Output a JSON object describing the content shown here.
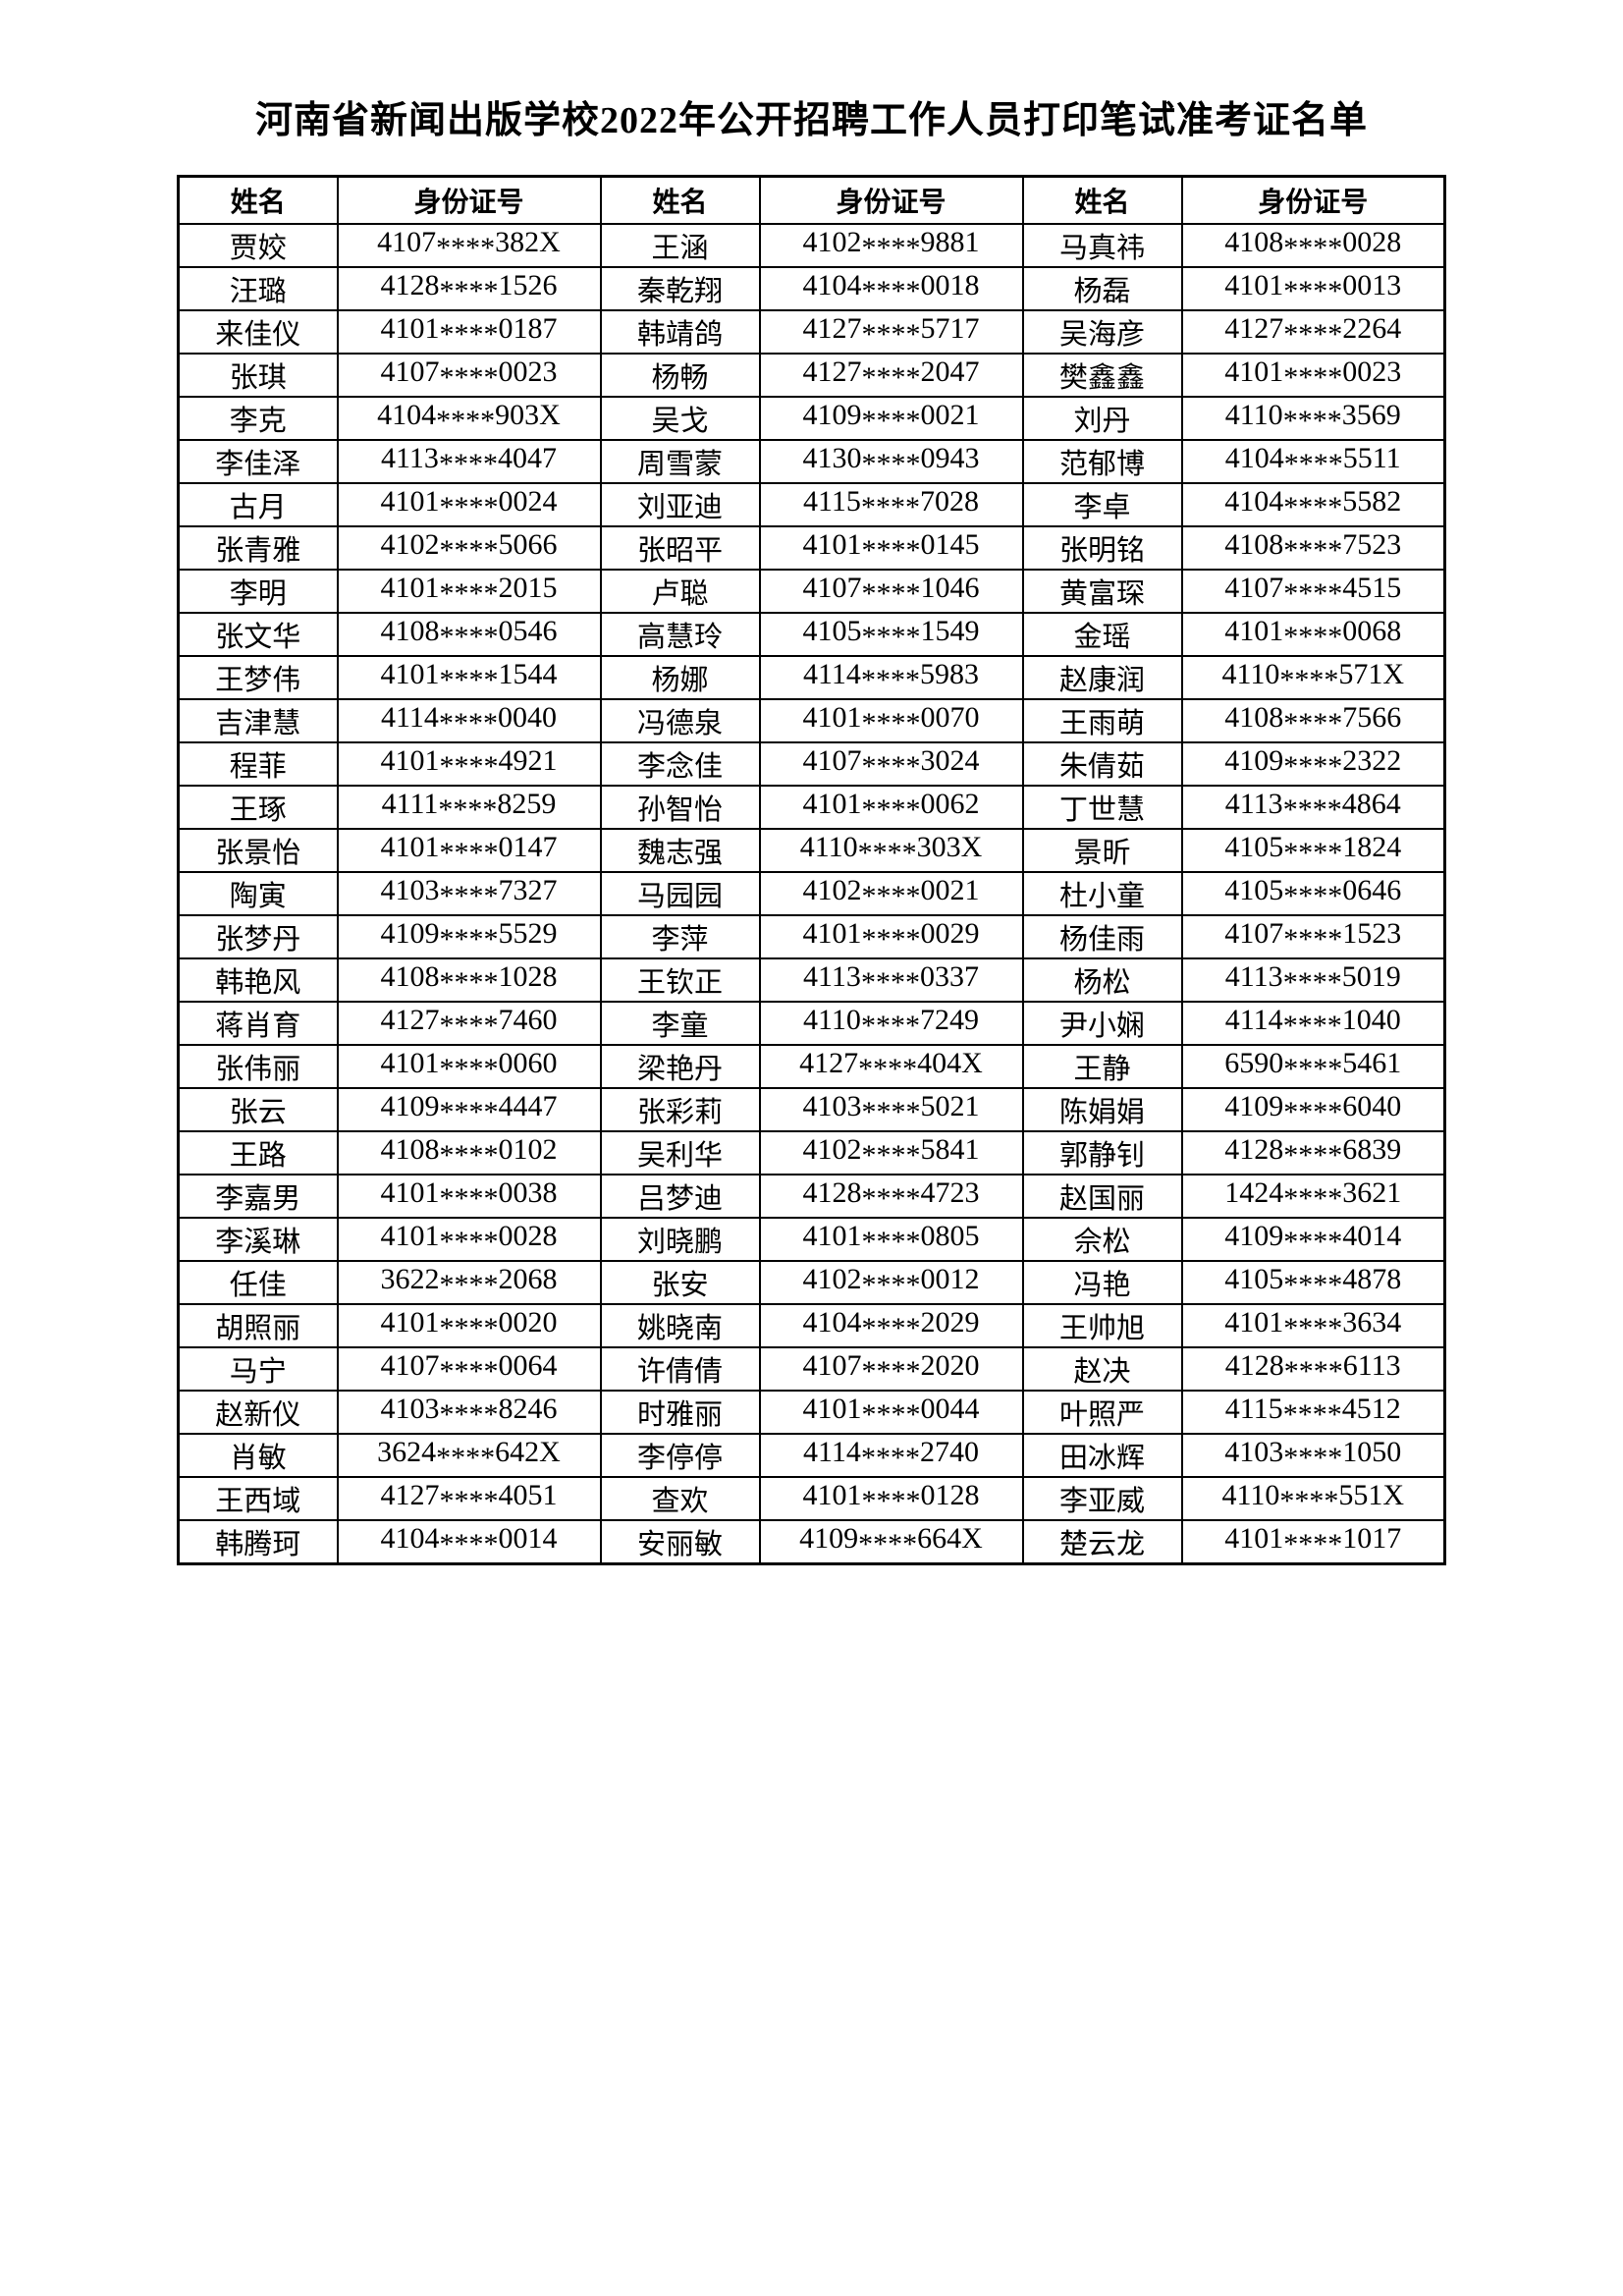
{
  "title": "河南省新闻出版学校2022年公开招聘工作人员打印笔试准考证名单",
  "table": {
    "headers": [
      "姓名",
      "身份证号",
      "姓名",
      "身份证号",
      "姓名",
      "身份证号"
    ],
    "rows": [
      [
        "贾姣",
        "4107****382X",
        "王涵",
        "4102****9881",
        "马真祎",
        "4108****0028"
      ],
      [
        "汪璐",
        "4128****1526",
        "秦乾翔",
        "4104****0018",
        "杨磊",
        "4101****0013"
      ],
      [
        "来佳仪",
        "4101****0187",
        "韩靖鸽",
        "4127****5717",
        "吴海彦",
        "4127****2264"
      ],
      [
        "张琪",
        "4107****0023",
        "杨畅",
        "4127****2047",
        "樊鑫鑫",
        "4101****0023"
      ],
      [
        "李克",
        "4104****903X",
        "吴戈",
        "4109****0021",
        "刘丹",
        "4110****3569"
      ],
      [
        "李佳泽",
        "4113****4047",
        "周雪蒙",
        "4130****0943",
        "范郁博",
        "4104****5511"
      ],
      [
        "古月",
        "4101****0024",
        "刘亚迪",
        "4115****7028",
        "李卓",
        "4104****5582"
      ],
      [
        "张青雅",
        "4102****5066",
        "张昭平",
        "4101****0145",
        "张明铭",
        "4108****7523"
      ],
      [
        "李明",
        "4101****2015",
        "卢聪",
        "4107****1046",
        "黄富琛",
        "4107****4515"
      ],
      [
        "张文华",
        "4108****0546",
        "高慧玲",
        "4105****1549",
        "金瑶",
        "4101****0068"
      ],
      [
        "王梦伟",
        "4101****1544",
        "杨娜",
        "4114****5983",
        "赵康润",
        "4110****571X"
      ],
      [
        "吉津慧",
        "4114****0040",
        "冯德泉",
        "4101****0070",
        "王雨萌",
        "4108****7566"
      ],
      [
        "程菲",
        "4101****4921",
        "李念佳",
        "4107****3024",
        "朱倩茹",
        "4109****2322"
      ],
      [
        "王琢",
        "4111****8259",
        "孙智怡",
        "4101****0062",
        "丁世慧",
        "4113****4864"
      ],
      [
        "张景怡",
        "4101****0147",
        "魏志强",
        "4110****303X",
        "景昕",
        "4105****1824"
      ],
      [
        "陶寅",
        "4103****7327",
        "马园园",
        "4102****0021",
        "杜小童",
        "4105****0646"
      ],
      [
        "张梦丹",
        "4109****5529",
        "李萍",
        "4101****0029",
        "杨佳雨",
        "4107****1523"
      ],
      [
        "韩艳风",
        "4108****1028",
        "王钦正",
        "4113****0337",
        "杨松",
        "4113****5019"
      ],
      [
        "蒋肖育",
        "4127****7460",
        "李童",
        "4110****7249",
        "尹小娴",
        "4114****1040"
      ],
      [
        "张伟丽",
        "4101****0060",
        "梁艳丹",
        "4127****404X",
        "王静",
        "6590****5461"
      ],
      [
        "张云",
        "4109****4447",
        "张彩莉",
        "4103****5021",
        "陈娟娟",
        "4109****6040"
      ],
      [
        "王路",
        "4108****0102",
        "吴利华",
        "4102****5841",
        "郭静钊",
        "4128****6839"
      ],
      [
        "李嘉男",
        "4101****0038",
        "吕梦迪",
        "4128****4723",
        "赵国丽",
        "1424****3621"
      ],
      [
        "李溪琳",
        "4101****0028",
        "刘晓鹏",
        "4101****0805",
        "佘松",
        "4109****4014"
      ],
      [
        "任佳",
        "3622****2068",
        "张安",
        "4102****0012",
        "冯艳",
        "4105****4878"
      ],
      [
        "胡照丽",
        "4101****0020",
        "姚晓南",
        "4104****2029",
        "王帅旭",
        "4101****3634"
      ],
      [
        "马宁",
        "4107****0064",
        "许倩倩",
        "4107****2020",
        "赵决",
        "4128****6113"
      ],
      [
        "赵新仪",
        "4103****8246",
        "时雅丽",
        "4101****0044",
        "叶照严",
        "4115****4512"
      ],
      [
        "肖敏",
        "3624****642X",
        "李停停",
        "4114****2740",
        "田冰辉",
        "4103****1050"
      ],
      [
        "王西域",
        "4127****4051",
        "查欢",
        "4101****0128",
        "李亚威",
        "4110****551X"
      ],
      [
        "韩腾珂",
        "4104****0014",
        "安丽敏",
        "4109****664X",
        "楚云龙",
        "4101****1017"
      ]
    ]
  }
}
